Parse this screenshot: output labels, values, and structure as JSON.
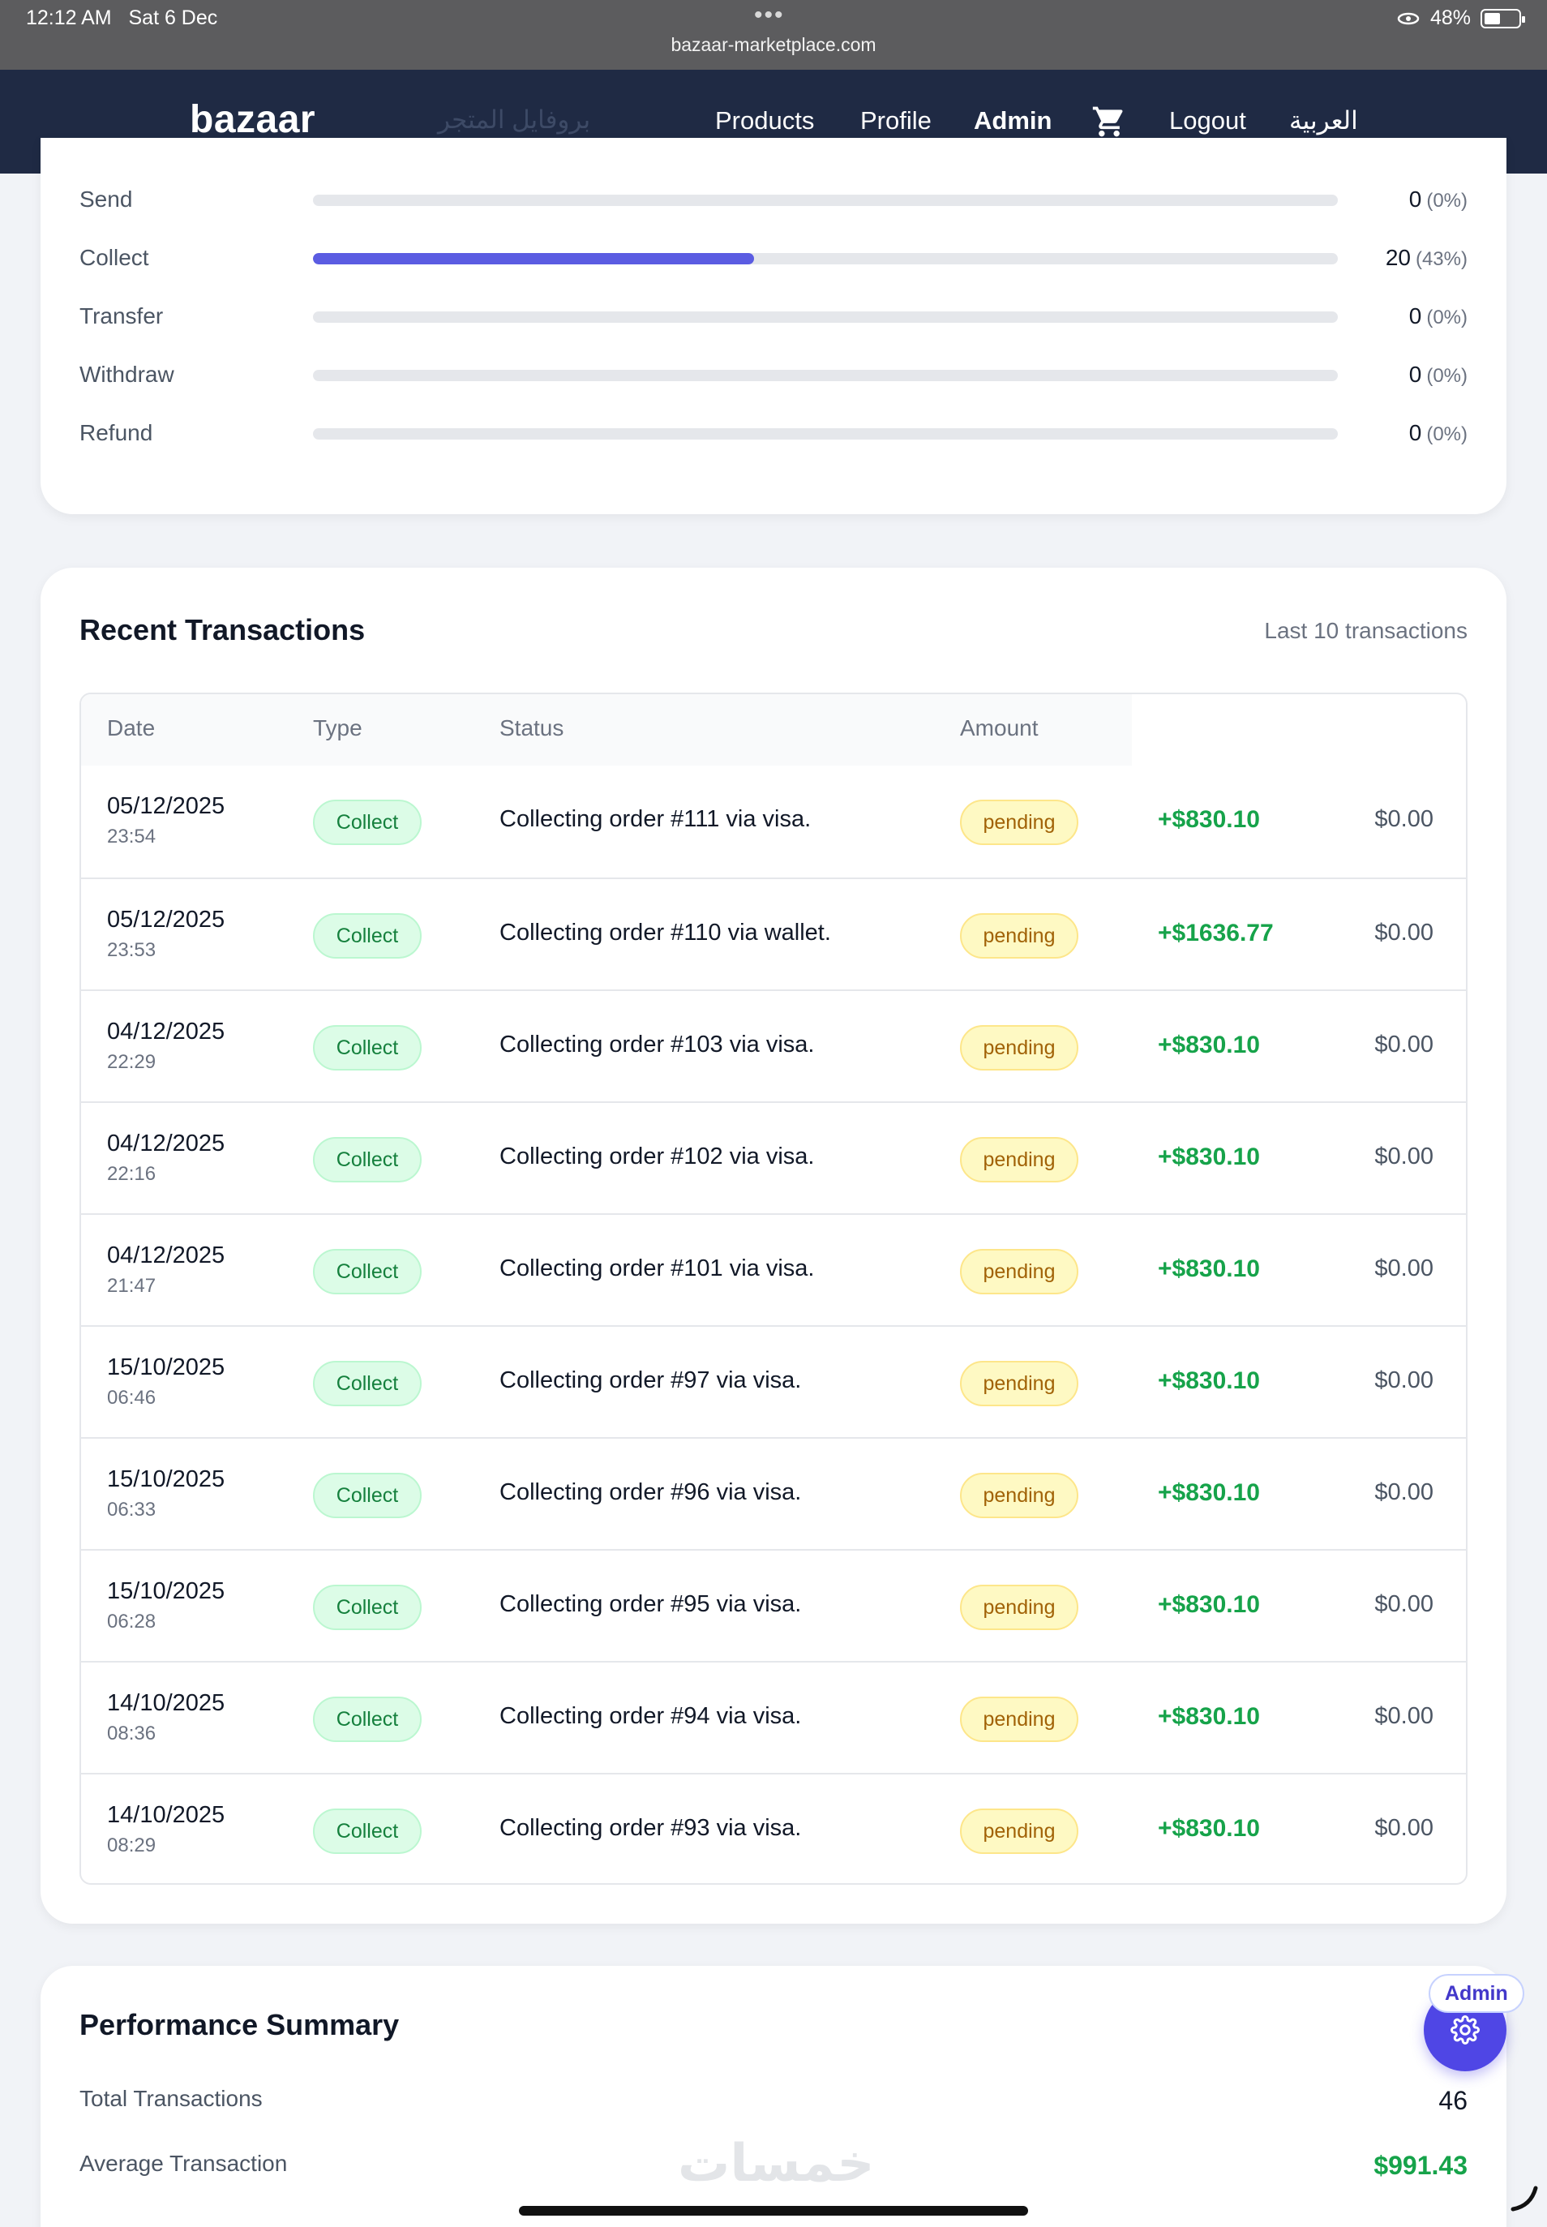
{
  "status_bar": {
    "time": "12:12 AM",
    "date": "Sat 6 Dec",
    "url": "bazaar-marketplace.com",
    "battery": "48%"
  },
  "navbar": {
    "brand": "bazaar",
    "ghost_link": "بروفايل المتجر",
    "links": [
      "Products",
      "Profile",
      "Admin",
      "Logout",
      "العربية"
    ],
    "cart_icon": "cart-icon"
  },
  "type_breakdown": [
    {
      "label": "Send",
      "count": "0",
      "pct": "(0%)",
      "fraction": 0
    },
    {
      "label": "Collect",
      "count": "20",
      "pct": "(43%)",
      "fraction": 0.43
    },
    {
      "label": "Transfer",
      "count": "0",
      "pct": "(0%)",
      "fraction": 0
    },
    {
      "label": "Withdraw",
      "count": "0",
      "pct": "(0%)",
      "fraction": 0
    },
    {
      "label": "Refund",
      "count": "0",
      "pct": "(0%)",
      "fraction": 0
    }
  ],
  "recent": {
    "title": "Recent Transactions",
    "subtitle": "Last 10 transactions",
    "headers": [
      "Date",
      "Type",
      "Status",
      "Amount"
    ],
    "rows": [
      {
        "date": "05/12/2025",
        "time": "23:54",
        "type": "Collect",
        "desc": "Collecting order #111 via visa.",
        "status": "pending",
        "amount": "+$830.10",
        "fee": "$0.00"
      },
      {
        "date": "05/12/2025",
        "time": "23:53",
        "type": "Collect",
        "desc": "Collecting order #110 via wallet.",
        "status": "pending",
        "amount": "+$1636.77",
        "fee": "$0.00"
      },
      {
        "date": "04/12/2025",
        "time": "22:29",
        "type": "Collect",
        "desc": "Collecting order #103 via visa.",
        "status": "pending",
        "amount": "+$830.10",
        "fee": "$0.00"
      },
      {
        "date": "04/12/2025",
        "time": "22:16",
        "type": "Collect",
        "desc": "Collecting order #102 via visa.",
        "status": "pending",
        "amount": "+$830.10",
        "fee": "$0.00"
      },
      {
        "date": "04/12/2025",
        "time": "21:47",
        "type": "Collect",
        "desc": "Collecting order #101 via visa.",
        "status": "pending",
        "amount": "+$830.10",
        "fee": "$0.00"
      },
      {
        "date": "15/10/2025",
        "time": "06:46",
        "type": "Collect",
        "desc": "Collecting order #97 via visa.",
        "status": "pending",
        "amount": "+$830.10",
        "fee": "$0.00"
      },
      {
        "date": "15/10/2025",
        "time": "06:33",
        "type": "Collect",
        "desc": "Collecting order #96 via visa.",
        "status": "pending",
        "amount": "+$830.10",
        "fee": "$0.00"
      },
      {
        "date": "15/10/2025",
        "time": "06:28",
        "type": "Collect",
        "desc": "Collecting order #95 via visa.",
        "status": "pending",
        "amount": "+$830.10",
        "fee": "$0.00"
      },
      {
        "date": "14/10/2025",
        "time": "08:36",
        "type": "Collect",
        "desc": "Collecting order #94 via visa.",
        "status": "pending",
        "amount": "+$830.10",
        "fee": "$0.00"
      },
      {
        "date": "14/10/2025",
        "time": "08:29",
        "type": "Collect",
        "desc": "Collecting order #93 via visa.",
        "status": "pending",
        "amount": "+$830.10",
        "fee": "$0.00"
      }
    ]
  },
  "performance": {
    "title": "Performance Summary",
    "total_label": "Total Transactions",
    "total_value": "46",
    "avg_label": "Average Transaction",
    "avg_value": "$991.43"
  },
  "admin_fab": {
    "label": "Admin",
    "icon": "gear-icon"
  },
  "watermark": "خمسات",
  "colors": {
    "navbar": "#1f2a44",
    "accent": "#5b5ce2",
    "positive": "#16a34a",
    "pending_bg": "#fef9c3",
    "collect_bg": "#dcfce7"
  }
}
